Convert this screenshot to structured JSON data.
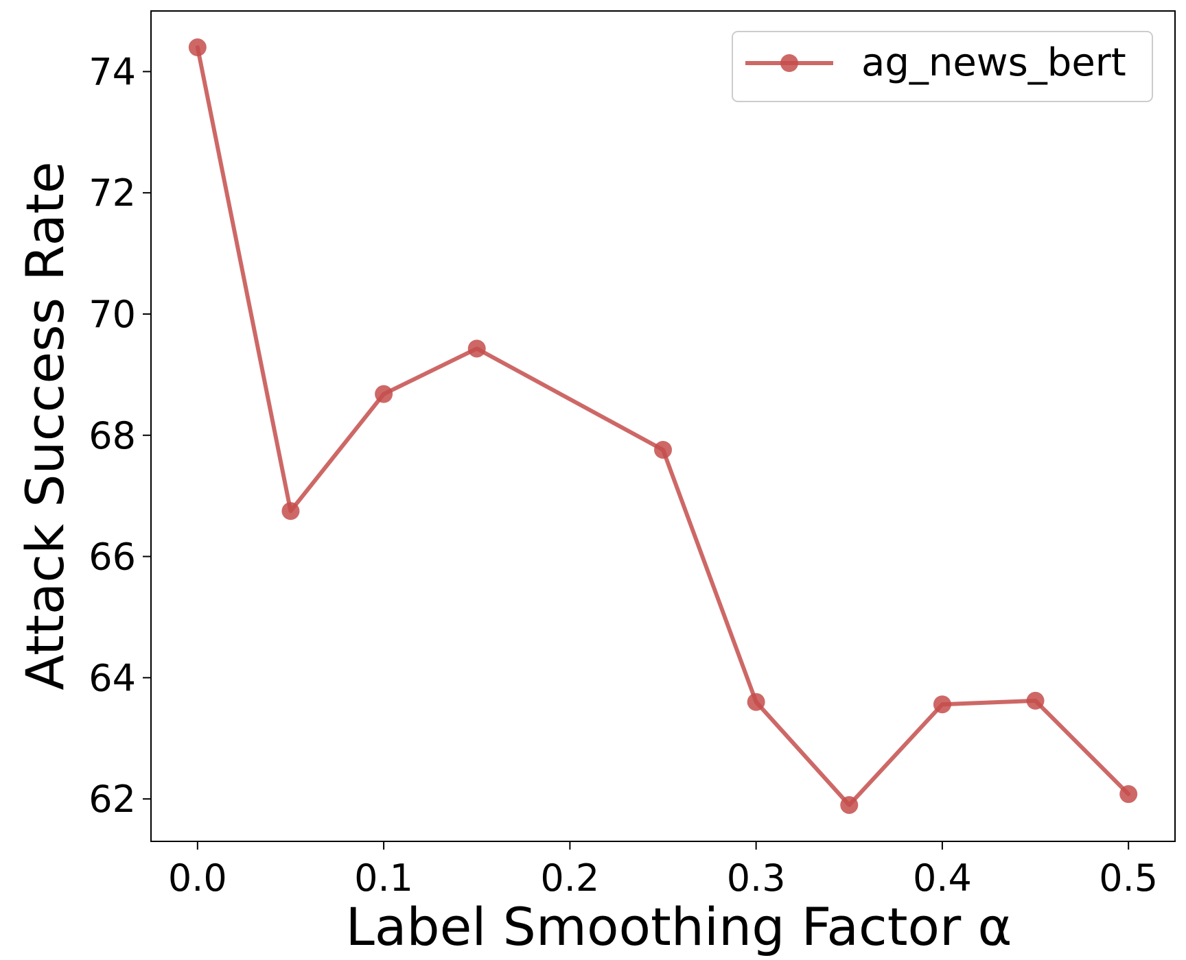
{
  "chart_data": {
    "type": "line",
    "xlabel": "Label Smoothing Factor α",
    "ylabel": "Attack Success Rate",
    "xlim": [
      -0.025,
      0.525
    ],
    "ylim": [
      61.3,
      75.0
    ],
    "xticks": [
      0.0,
      0.1,
      0.2,
      0.3,
      0.4,
      0.5
    ],
    "xtick_labels": [
      "0.0",
      "0.1",
      "0.2",
      "0.3",
      "0.4",
      "0.5"
    ],
    "yticks": [
      62,
      64,
      66,
      68,
      70,
      72,
      74
    ],
    "ytick_labels": [
      "62",
      "64",
      "66",
      "68",
      "70",
      "72",
      "74"
    ],
    "grid": false,
    "legend_position": "top-right",
    "series": [
      {
        "name": "ag_news_bert",
        "color": "#c44e4b",
        "marker": "circle",
        "x": [
          0.0,
          0.05,
          0.1,
          0.15,
          0.25,
          0.3,
          0.35,
          0.4,
          0.45,
          0.5
        ],
        "y": [
          74.4,
          66.75,
          68.68,
          69.43,
          67.76,
          63.6,
          61.9,
          63.56,
          63.62,
          62.08
        ]
      }
    ]
  }
}
